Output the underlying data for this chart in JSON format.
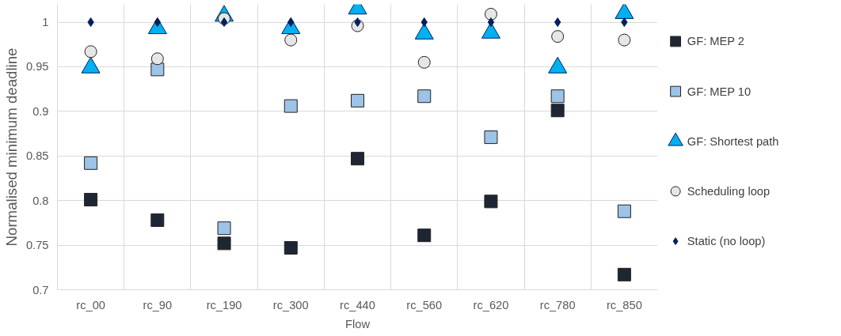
{
  "chart_data": {
    "type": "scatter",
    "xlabel": "Flow",
    "ylabel": "Normalised minimum deadline",
    "categories": [
      "rc_00",
      "rc_90",
      "rc_190",
      "rc_300",
      "rc_440",
      "rc_560",
      "rc_620",
      "rc_780",
      "rc_850"
    ],
    "ylim": [
      0.7,
      1.02
    ],
    "yticks": [
      0.7,
      0.75,
      0.8,
      0.85,
      0.9,
      0.95,
      1
    ],
    "grid": true,
    "legend": "right",
    "series": [
      {
        "name": "GF: MEP 2",
        "color": "#1f2633",
        "marker": "square",
        "values": [
          0.801,
          0.778,
          0.752,
          0.747,
          0.847,
          0.761,
          0.799,
          0.901,
          0.717
        ]
      },
      {
        "name": "GF: MEP 10",
        "color": "#9dc3e6",
        "marker": "square",
        "values": [
          0.842,
          0.947,
          0.769,
          0.906,
          0.912,
          0.917,
          0.871,
          0.917,
          0.788
        ]
      },
      {
        "name": "GF: Shortest path",
        "color": "#00b0f0",
        "marker": "triangle",
        "values": [
          0.949,
          0.993,
          1.007,
          0.993,
          1.015,
          0.987,
          0.988,
          0.949,
          1.01
        ]
      },
      {
        "name": "Scheduling loop",
        "color": "#e7e6e6",
        "marker": "circle",
        "values": [
          0.967,
          0.959,
          1.004,
          0.98,
          0.996,
          0.955,
          1.009,
          0.984,
          0.98
        ]
      },
      {
        "name": "Static (no loop)",
        "color": "#002060",
        "marker": "diamond",
        "values": [
          1,
          1,
          1,
          1,
          1,
          1,
          1,
          1,
          1
        ]
      }
    ]
  }
}
